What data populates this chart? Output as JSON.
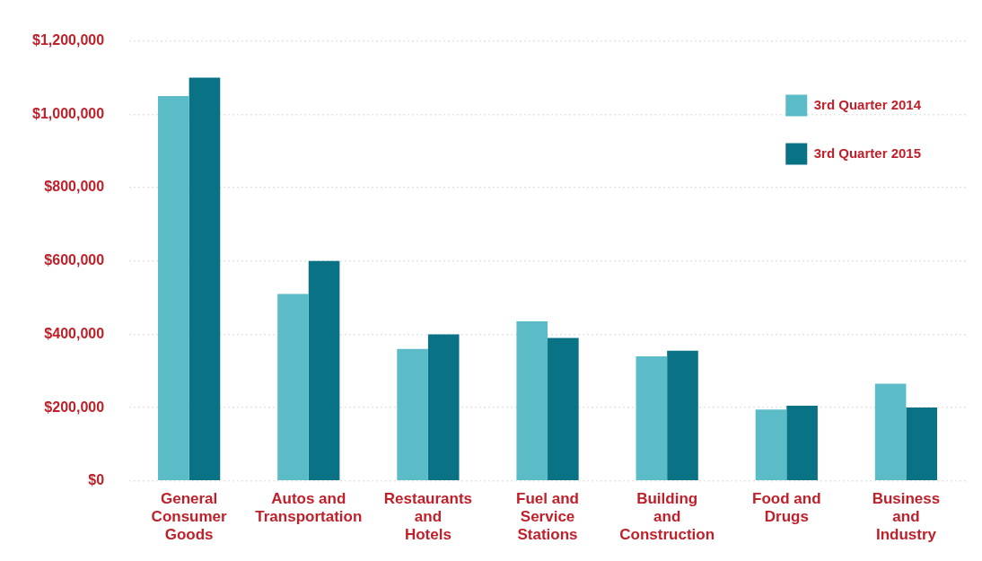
{
  "chart_data": {
    "type": "bar",
    "categories": [
      "General Consumer Goods",
      "Autos and Transportation",
      "Restaurants and Hotels",
      "Fuel and Service Stations",
      "Building and Construction",
      "Food and Drugs",
      "Business and Industry"
    ],
    "series": [
      {
        "name": "3rd Quarter 2014",
        "color": "#5bbcc8",
        "values": [
          1050000,
          510000,
          360000,
          435000,
          340000,
          195000,
          265000
        ]
      },
      {
        "name": "3rd Quarter 2015",
        "color": "#0a7285",
        "values": [
          1100000,
          600000,
          400000,
          390000,
          355000,
          205000,
          200000
        ]
      }
    ],
    "ylim": [
      0,
      1200000
    ],
    "yticks": [
      {
        "value": 0,
        "label": "$0"
      },
      {
        "value": 200000,
        "label": "$200,000"
      },
      {
        "value": 400000,
        "label": "$400,000"
      },
      {
        "value": 600000,
        "label": "$600,000"
      },
      {
        "value": 800000,
        "label": "$800,000"
      },
      {
        "value": 1000000,
        "label": "$1,000,000"
      },
      {
        "value": 1200000,
        "label": "$1,200,000"
      }
    ],
    "grid": "y",
    "legend": "top right"
  }
}
